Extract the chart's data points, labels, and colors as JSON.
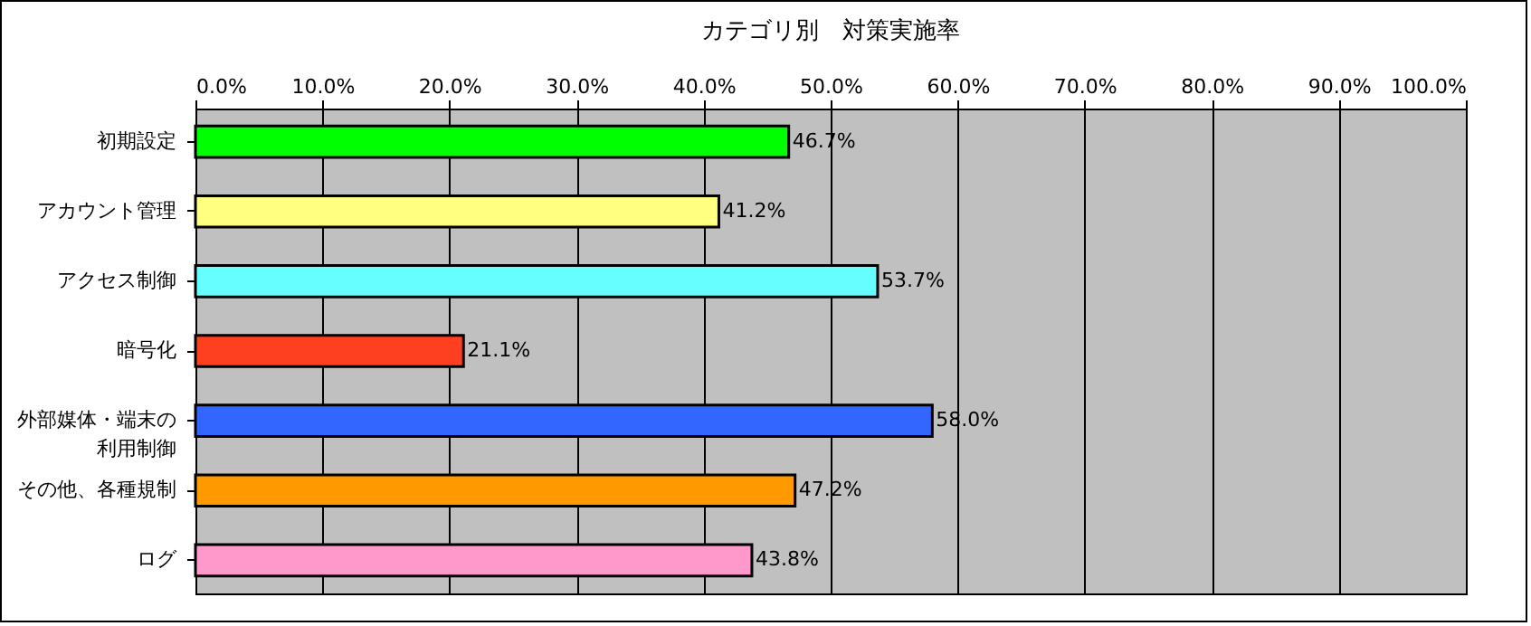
{
  "chart_data": {
    "type": "bar",
    "orientation": "horizontal",
    "title": "カテゴリ別　対策実施率",
    "categories": [
      "初期設定",
      "アカウント管理",
      "アクセス制御",
      "暗号化",
      "外部媒体・端末の利用制御",
      "その他、各種規制",
      "ログ"
    ],
    "values": [
      46.7,
      41.2,
      53.7,
      21.1,
      58.0,
      47.2,
      43.8
    ],
    "colors": [
      "#00ff00",
      "#ffff80",
      "#66ffff",
      "#ff4020",
      "#3366ff",
      "#ff9900",
      "#ff99cc"
    ],
    "value_labels": [
      "46.7%",
      "41.2%",
      "53.7%",
      "21.1%",
      "58.0%",
      "47.2%",
      "43.8%"
    ],
    "xlim": [
      0,
      100
    ],
    "xticks": [
      {
        "value": 0,
        "label": "0.0%"
      },
      {
        "value": 10,
        "label": "10.0%"
      },
      {
        "value": 20,
        "label": "20.0%"
      },
      {
        "value": 30,
        "label": "30.0%"
      },
      {
        "value": 40,
        "label": "40.0%"
      },
      {
        "value": 50,
        "label": "50.0%"
      },
      {
        "value": 60,
        "label": "60.0%"
      },
      {
        "value": 70,
        "label": "70.0%"
      },
      {
        "value": 80,
        "label": "80.0%"
      },
      {
        "value": 90,
        "label": "90.0%"
      },
      {
        "value": 100,
        "label": "100.0%"
      }
    ],
    "grid": "x"
  }
}
